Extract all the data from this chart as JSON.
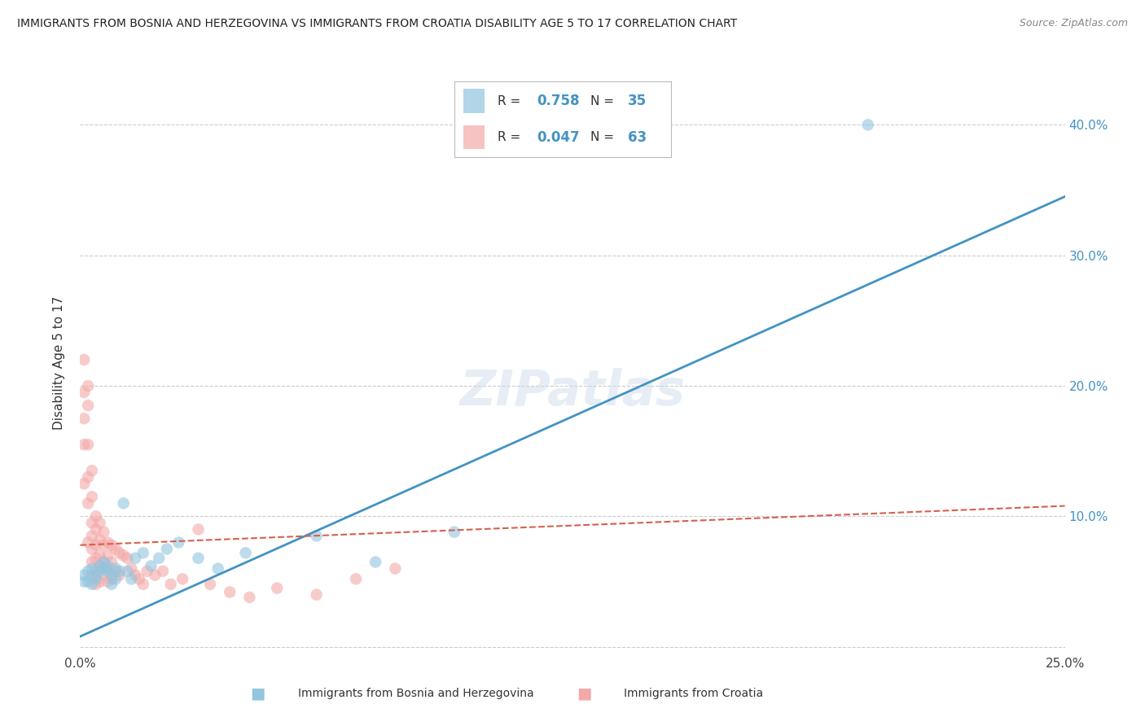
{
  "title": "IMMIGRANTS FROM BOSNIA AND HERZEGOVINA VS IMMIGRANTS FROM CROATIA DISABILITY AGE 5 TO 17 CORRELATION CHART",
  "source": "Source: ZipAtlas.com",
  "ylabel": "Disability Age 5 to 17",
  "xlabel_bosnia": "Immigrants from Bosnia and Herzegovina",
  "xlabel_croatia": "Immigrants from Croatia",
  "xlim": [
    0.0,
    0.25
  ],
  "ylim": [
    -0.005,
    0.44
  ],
  "xticks": [
    0.0,
    0.05,
    0.1,
    0.15,
    0.2,
    0.25
  ],
  "yticks": [
    0.0,
    0.1,
    0.2,
    0.3,
    0.4
  ],
  "ytick_labels_right": [
    "",
    "10.0%",
    "20.0%",
    "30.0%",
    "40.0%"
  ],
  "xtick_labels": [
    "0.0%",
    "",
    "",
    "",
    "",
    "25.0%"
  ],
  "bosnia_R": 0.758,
  "bosnia_N": 35,
  "croatia_R": 0.047,
  "croatia_N": 63,
  "bosnia_color": "#92c5de",
  "croatia_color": "#f4a9a9",
  "bosnia_line_color": "#4393c3",
  "croatia_line_color": "#d6604d",
  "background_color": "#ffffff",
  "grid_color": "#cccccc",
  "bosnia_scatter_x": [
    0.001,
    0.001,
    0.002,
    0.002,
    0.003,
    0.003,
    0.004,
    0.004,
    0.005,
    0.005,
    0.006,
    0.006,
    0.007,
    0.007,
    0.008,
    0.008,
    0.009,
    0.009,
    0.01,
    0.011,
    0.012,
    0.013,
    0.014,
    0.016,
    0.018,
    0.02,
    0.022,
    0.025,
    0.03,
    0.035,
    0.042,
    0.06,
    0.075,
    0.095,
    0.2
  ],
  "bosnia_scatter_y": [
    0.05,
    0.055,
    0.05,
    0.058,
    0.048,
    0.06,
    0.055,
    0.052,
    0.062,
    0.058,
    0.06,
    0.065,
    0.058,
    0.062,
    0.048,
    0.055,
    0.052,
    0.06,
    0.058,
    0.11,
    0.058,
    0.052,
    0.068,
    0.072,
    0.062,
    0.068,
    0.075,
    0.08,
    0.068,
    0.06,
    0.072,
    0.085,
    0.065,
    0.088,
    0.4
  ],
  "croatia_scatter_x": [
    0.001,
    0.001,
    0.001,
    0.001,
    0.001,
    0.002,
    0.002,
    0.002,
    0.002,
    0.002,
    0.002,
    0.003,
    0.003,
    0.003,
    0.003,
    0.003,
    0.003,
    0.003,
    0.004,
    0.004,
    0.004,
    0.004,
    0.004,
    0.004,
    0.005,
    0.005,
    0.005,
    0.005,
    0.005,
    0.006,
    0.006,
    0.006,
    0.006,
    0.007,
    0.007,
    0.007,
    0.007,
    0.008,
    0.008,
    0.008,
    0.009,
    0.009,
    0.01,
    0.01,
    0.011,
    0.012,
    0.013,
    0.014,
    0.015,
    0.016,
    0.017,
    0.019,
    0.021,
    0.023,
    0.026,
    0.03,
    0.033,
    0.038,
    0.043,
    0.05,
    0.06,
    0.07,
    0.08
  ],
  "croatia_scatter_y": [
    0.22,
    0.195,
    0.175,
    0.155,
    0.125,
    0.2,
    0.185,
    0.155,
    0.13,
    0.11,
    0.08,
    0.135,
    0.115,
    0.095,
    0.085,
    0.075,
    0.065,
    0.055,
    0.1,
    0.09,
    0.078,
    0.068,
    0.058,
    0.048,
    0.095,
    0.082,
    0.07,
    0.062,
    0.05,
    0.088,
    0.078,
    0.065,
    0.055,
    0.08,
    0.07,
    0.06,
    0.05,
    0.078,
    0.065,
    0.052,
    0.075,
    0.058,
    0.072,
    0.055,
    0.07,
    0.068,
    0.06,
    0.055,
    0.052,
    0.048,
    0.058,
    0.055,
    0.058,
    0.048,
    0.052,
    0.09,
    0.048,
    0.042,
    0.038,
    0.045,
    0.04,
    0.052,
    0.06
  ],
  "bosnia_line_x": [
    0.0,
    0.25
  ],
  "bosnia_line_y": [
    0.008,
    0.345
  ],
  "croatia_line_x": [
    0.0,
    0.25
  ],
  "croatia_line_y": [
    0.078,
    0.108
  ]
}
